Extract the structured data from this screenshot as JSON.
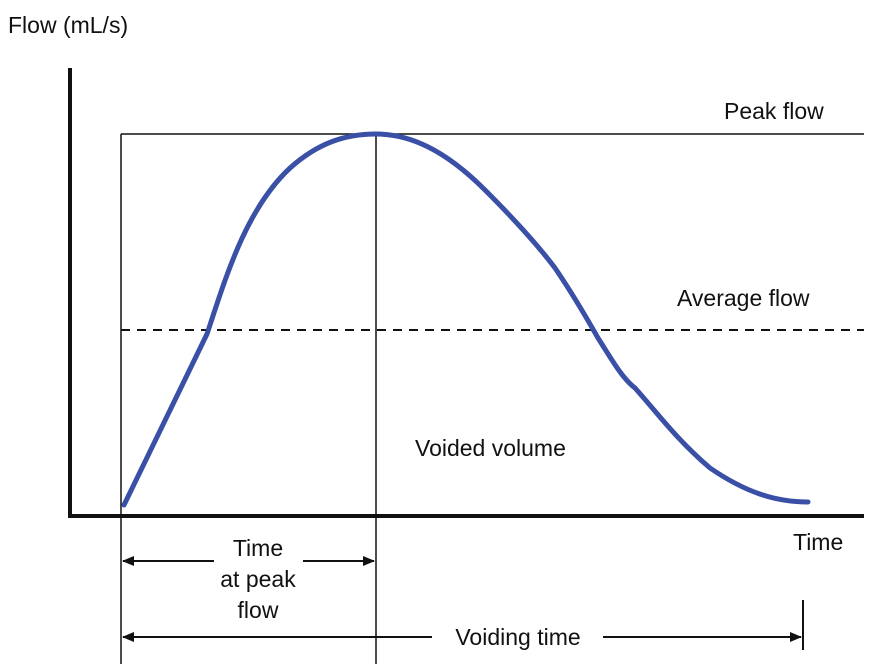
{
  "diagram": {
    "y_axis_label": "Flow (mL/s)",
    "x_axis_label": "Time",
    "peak_flow_label": "Peak flow",
    "average_flow_label": "Average flow",
    "voided_volume_label": "Voided volume",
    "time_at_peak_label": [
      "Time",
      "at peak",
      "flow"
    ],
    "voiding_time_label": "Voiding time",
    "colors": {
      "curve": "#3a4fa6",
      "lines": "#111111",
      "background": "#ffffff"
    }
  }
}
